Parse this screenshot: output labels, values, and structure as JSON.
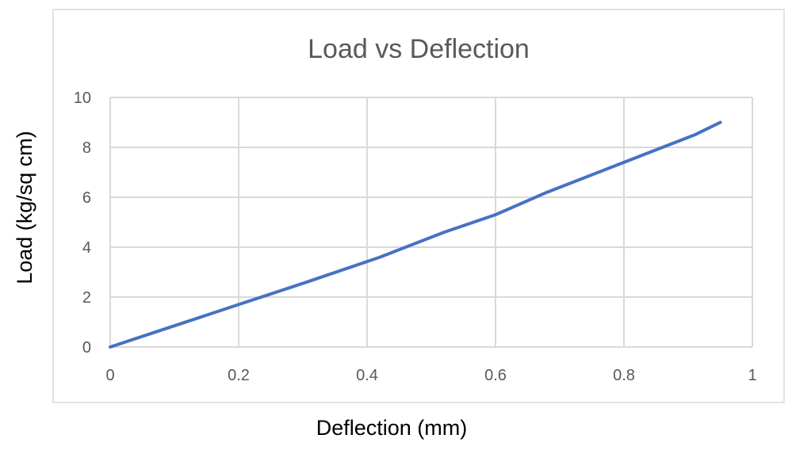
{
  "chart_data": {
    "type": "line",
    "title": "Load vs Deflection",
    "xlabel": "Deflection (mm)",
    "ylabel": "Load (kg/sq cm)",
    "xlim": [
      0,
      1
    ],
    "ylim": [
      0,
      10
    ],
    "x_ticks": [
      "0",
      "0.2",
      "0.4",
      "0.6",
      "0.8",
      "1"
    ],
    "y_ticks": [
      "0",
      "2",
      "4",
      "6",
      "8",
      "10"
    ],
    "grid": true,
    "legend": "none",
    "colors": {
      "series": "#4472c4",
      "grid": "#d9d9d9",
      "border": "#d9d9d9",
      "title": "#595959",
      "ticks": "#595959",
      "axis_labels": "#000000"
    },
    "series": [
      {
        "x": [
          0,
          0.1,
          0.2,
          0.3,
          0.42,
          0.52,
          0.6,
          0.68,
          0.8,
          0.91,
          0.95
        ],
        "y": [
          0,
          0.85,
          1.7,
          2.55,
          3.6,
          4.6,
          5.3,
          6.2,
          7.4,
          8.5,
          9.0
        ]
      }
    ]
  }
}
